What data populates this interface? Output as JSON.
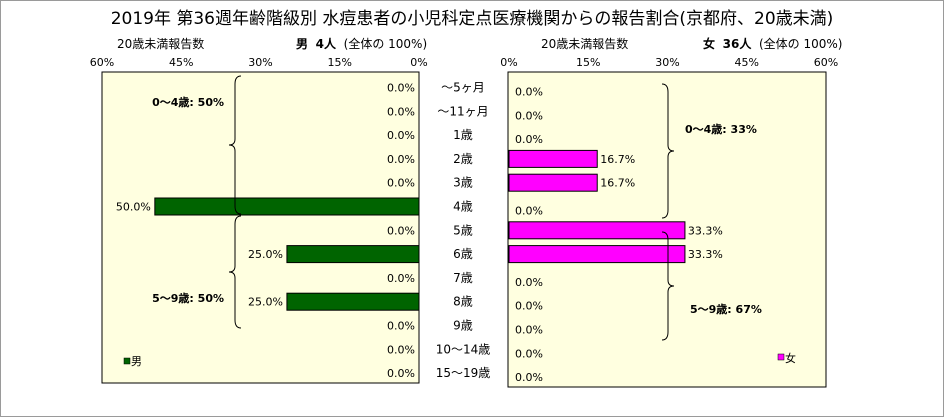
{
  "title": "2019年 第36週年齢階級別 水痘患者の小児科定点医療機関からの報告割合(京都府、20歳未満)",
  "male_header": {
    "left_label": "20歳未満報告数",
    "sex": "男",
    "count": "4人",
    "total": "(全体の 100%)"
  },
  "female_header": {
    "left_label": "20歳未満報告数",
    "sex": "女",
    "count": "36人",
    "total": "(全体の 100%)"
  },
  "colors": {
    "plot_bg": "#ffffe0",
    "male": "#006400",
    "female": "#ff00ff",
    "bar_border": "#000000"
  },
  "chart_data": {
    "type": "bar",
    "categories": [
      "〜5ヶ月",
      "〜11ヶ月",
      "1歳",
      "2歳",
      "3歳",
      "4歳",
      "5歳",
      "6歳",
      "7歳",
      "8歳",
      "9歳",
      "10〜14歳",
      "15〜19歳"
    ],
    "series": [
      {
        "name": "男",
        "values": [
          0,
          0,
          0,
          0,
          0,
          50,
          0,
          25,
          0,
          25,
          0,
          0,
          0
        ],
        "labels": [
          "0.0%",
          "0.0%",
          "0.0%",
          "0.0%",
          "0.0%",
          "50.0%",
          "0.0%",
          "25.0%",
          "0.0%",
          "25.0%",
          "0.0%",
          "0.0%",
          "0.0%"
        ]
      },
      {
        "name": "女",
        "values": [
          0,
          0,
          0,
          16.7,
          16.7,
          0,
          33.3,
          33.3,
          0,
          0,
          0,
          0,
          0
        ],
        "labels": [
          "0.0%",
          "0.0%",
          "0.0%",
          "16.7%",
          "16.7%",
          "0.0%",
          "33.3%",
          "33.3%",
          "0.0%",
          "0.0%",
          "0.0%",
          "0.0%",
          "0.0%"
        ]
      }
    ],
    "male_ticks": [
      "60%",
      "45%",
      "30%",
      "15%",
      "0%"
    ],
    "female_ticks": [
      "0%",
      "15%",
      "30%",
      "45%",
      "60%"
    ],
    "xlim": [
      0,
      60
    ],
    "annotations": {
      "male_0_4": "0〜4歳: 50%",
      "male_5_9": "5〜9歳: 50%",
      "female_0_4": "0〜4歳: 33%",
      "female_5_9": "5〜9歳: 67%"
    },
    "grid": false
  }
}
